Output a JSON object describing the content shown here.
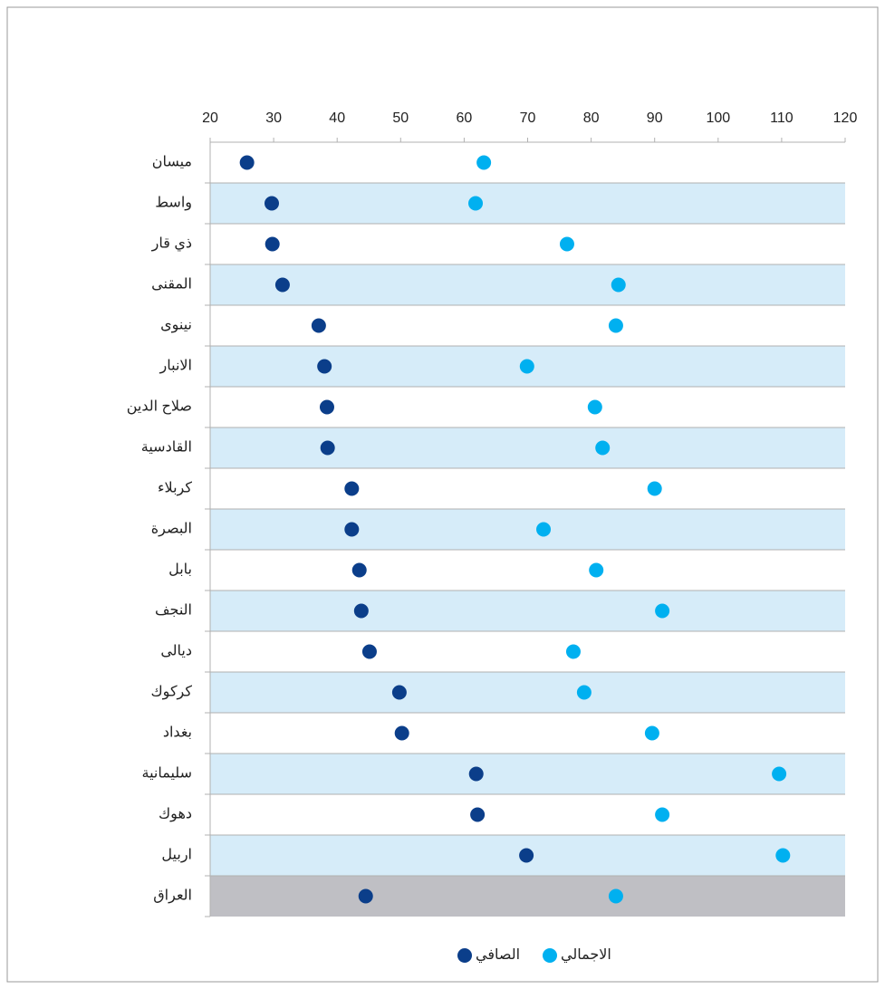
{
  "chart_data": {
    "type": "dot",
    "categories": [
      "ميسان",
      "واسط",
      "ذي قار",
      "المقنى",
      "نينوى",
      "الانبار",
      "صلاح الدين",
      "القادسية",
      "كربلاء",
      "البصرة",
      "بابل",
      "النجف",
      "ديالى",
      "كركوك",
      "بغداد",
      "سليمانية",
      "دهوك",
      "اربيل",
      "العراق"
    ],
    "series": [
      {
        "name": "الاجمالي",
        "color": "#00b0f0",
        "values": [
          63.1,
          61.8,
          76.2,
          84.3,
          83.9,
          69.9,
          80.6,
          81.8,
          90.0,
          72.5,
          80.8,
          91.2,
          77.2,
          78.9,
          89.6,
          109.6,
          91.2,
          110.2,
          83.9
        ]
      },
      {
        "name": "الصافي",
        "color": "#0b3e8a",
        "values": [
          25.8,
          29.7,
          29.8,
          31.4,
          37.1,
          38.0,
          38.4,
          38.5,
          42.3,
          42.3,
          43.5,
          43.8,
          45.1,
          49.8,
          50.2,
          61.9,
          62.1,
          69.8,
          44.5
        ]
      }
    ],
    "xlim": [
      20,
      120
    ],
    "xticks": [
      20,
      30,
      40,
      50,
      60,
      70,
      80,
      90,
      100,
      110,
      120
    ]
  }
}
